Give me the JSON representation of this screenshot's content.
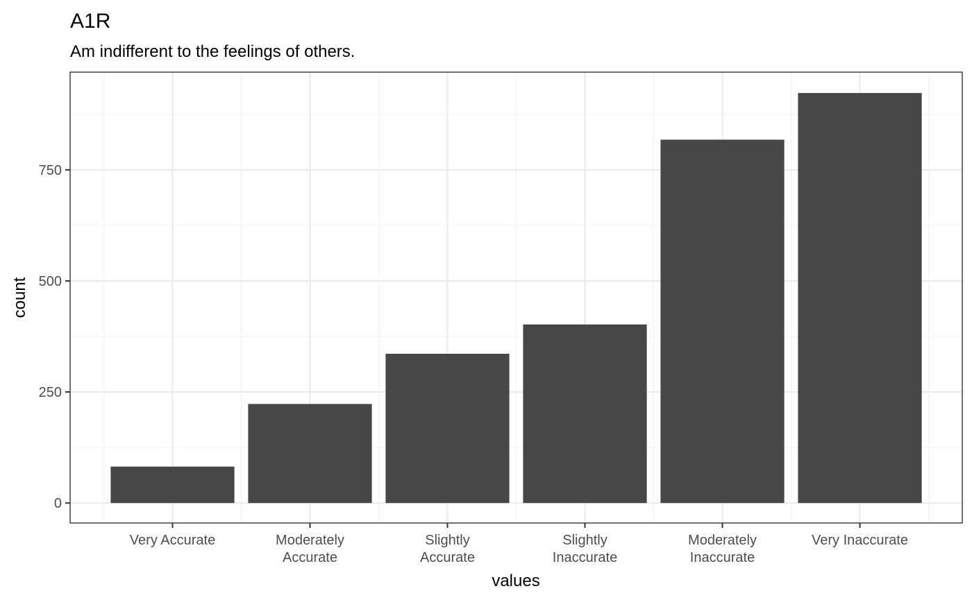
{
  "chart_data": {
    "type": "bar",
    "title": "A1R",
    "subtitle": "Am indifferent to the feelings of others.",
    "xlabel": "values",
    "ylabel": "count",
    "categories": [
      [
        "Very Accurate"
      ],
      [
        "Moderately",
        "Accurate"
      ],
      [
        "Slightly",
        "Accurate"
      ],
      [
        "Slightly",
        "Inaccurate"
      ],
      [
        "Moderately",
        "Inaccurate"
      ],
      [
        "Very Inaccurate"
      ]
    ],
    "values": [
      82,
      223,
      336,
      402,
      818,
      923
    ],
    "ylim": [
      -45,
      970
    ],
    "yticks": [
      0,
      250,
      500,
      750
    ],
    "grid": true,
    "colors": {
      "bar": "#474747",
      "panel_border": "#333333",
      "grid_major": "#ebebeb",
      "grid_minor": "#f3f3f3",
      "tick": "#333333"
    }
  }
}
